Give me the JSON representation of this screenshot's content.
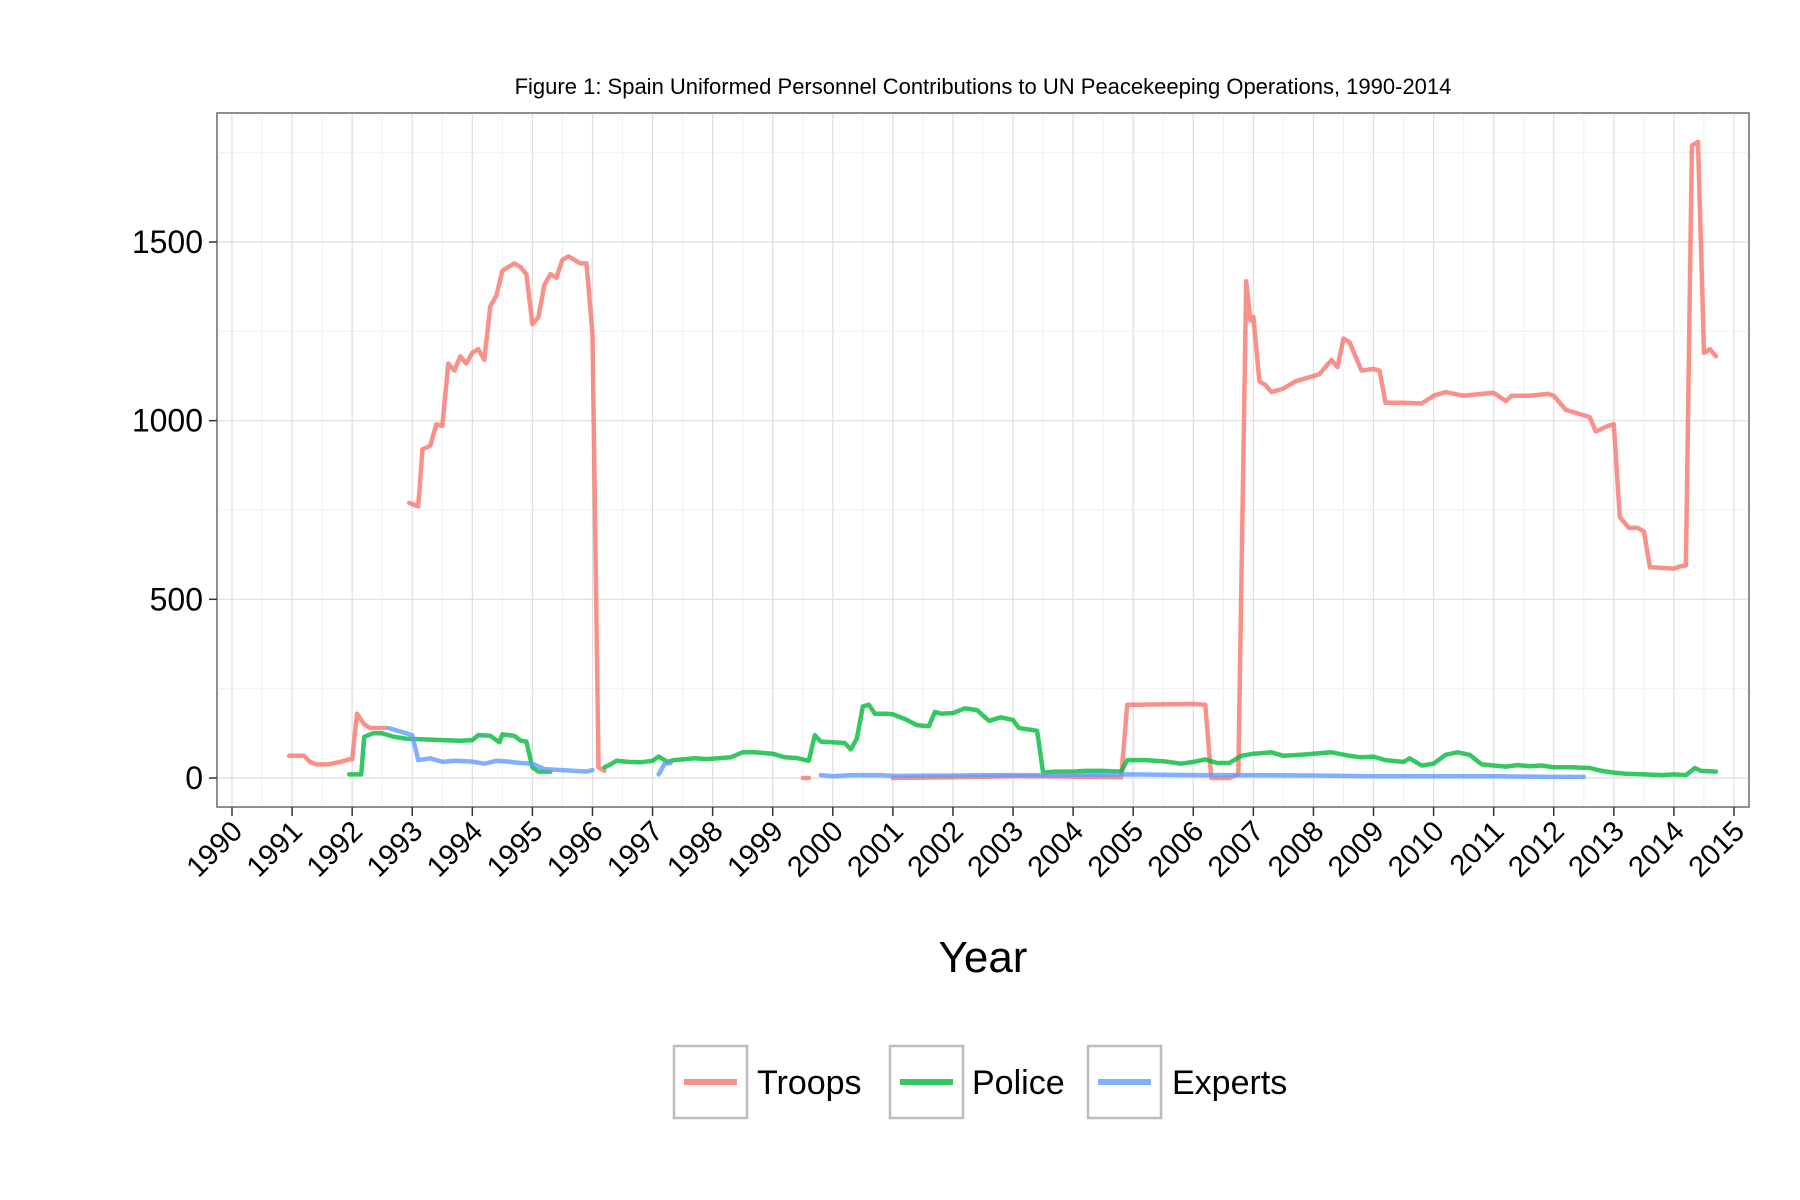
{
  "chart_data": {
    "type": "line",
    "title": "Figure 1: Spain Uniformed Personnel Contributions to UN Peacekeeping Operations, 1990-2014",
    "xlabel": "Year",
    "ylabel": "",
    "xlim": [
      1990,
      2015
    ],
    "ylim": [
      -75,
      1860
    ],
    "y_ticks": [
      0,
      500,
      1000,
      1500
    ],
    "x_ticks": [
      "1990",
      "1991",
      "1992",
      "1993",
      "1994",
      "1995",
      "1996",
      "1997",
      "1998",
      "1999",
      "2000",
      "2001",
      "2002",
      "2003",
      "2004",
      "2005",
      "2006",
      "2007",
      "2008",
      "2009",
      "2010",
      "2011",
      "2012",
      "2013",
      "2014",
      "2015"
    ],
    "grid": true,
    "legend_position": "bottom",
    "series": [
      {
        "name": "Troops",
        "color": "#F8766D",
        "segments": [
          [
            [
              1990.95,
              62
            ],
            [
              1991.2,
              62
            ],
            [
              1991.3,
              45
            ],
            [
              1991.4,
              38
            ],
            [
              1991.6,
              38
            ],
            [
              1991.8,
              45
            ],
            [
              1991.95,
              52
            ],
            [
              1992.0,
              52
            ],
            [
              1992.08,
              180
            ],
            [
              1992.2,
              150
            ],
            [
              1992.3,
              140
            ],
            [
              1992.55,
              140
            ]
          ],
          [
            [
              1992.95,
              770
            ],
            [
              1993.1,
              760
            ],
            [
              1993.17,
              920
            ],
            [
              1993.3,
              930
            ],
            [
              1993.4,
              990
            ],
            [
              1993.5,
              985
            ],
            [
              1993.6,
              1160
            ],
            [
              1993.7,
              1140
            ],
            [
              1993.8,
              1180
            ],
            [
              1993.9,
              1160
            ],
            [
              1994.0,
              1190
            ],
            [
              1994.1,
              1200
            ],
            [
              1994.2,
              1170
            ],
            [
              1994.3,
              1320
            ],
            [
              1994.4,
              1350
            ],
            [
              1994.5,
              1420
            ],
            [
              1994.6,
              1430
            ],
            [
              1994.7,
              1440
            ],
            [
              1994.8,
              1430
            ],
            [
              1994.9,
              1410
            ],
            [
              1995.0,
              1270
            ],
            [
              1995.1,
              1290
            ],
            [
              1995.2,
              1380
            ],
            [
              1995.3,
              1410
            ],
            [
              1995.4,
              1400
            ],
            [
              1995.5,
              1450
            ],
            [
              1995.6,
              1460
            ],
            [
              1995.7,
              1450
            ],
            [
              1995.8,
              1440
            ],
            [
              1995.9,
              1440
            ],
            [
              1996.0,
              1240
            ],
            [
              1996.1,
              30
            ],
            [
              1996.2,
              20
            ]
          ],
          [
            [
              1999.5,
              0
            ],
            [
              1999.6,
              0
            ]
          ],
          [
            [
              2001.0,
              0
            ],
            [
              2002.0,
              2
            ],
            [
              2003.0,
              5
            ],
            [
              2004.0,
              4
            ],
            [
              2004.8,
              2
            ],
            [
              2004.9,
              205
            ],
            [
              2005.0,
              205
            ],
            [
              2005.5,
              206
            ],
            [
              2006.0,
              207
            ],
            [
              2006.2,
              205
            ],
            [
              2006.3,
              0
            ],
            [
              2006.6,
              0
            ],
            [
              2006.75,
              10
            ],
            [
              2006.88,
              1390
            ],
            [
              2006.95,
              1280
            ],
            [
              2007.0,
              1290
            ],
            [
              2007.1,
              1110
            ],
            [
              2007.2,
              1100
            ],
            [
              2007.3,
              1080
            ],
            [
              2007.5,
              1090
            ],
            [
              2007.7,
              1110
            ],
            [
              2007.9,
              1120
            ],
            [
              2008.1,
              1130
            ],
            [
              2008.3,
              1170
            ],
            [
              2008.4,
              1150
            ],
            [
              2008.5,
              1230
            ],
            [
              2008.6,
              1220
            ],
            [
              2008.8,
              1140
            ],
            [
              2009.0,
              1145
            ],
            [
              2009.1,
              1140
            ],
            [
              2009.2,
              1050
            ],
            [
              2009.5,
              1050
            ],
            [
              2009.8,
              1048
            ],
            [
              2010.0,
              1070
            ],
            [
              2010.2,
              1080
            ],
            [
              2010.5,
              1070
            ],
            [
              2010.8,
              1075
            ],
            [
              2011.0,
              1078
            ],
            [
              2011.2,
              1055
            ],
            [
              2011.3,
              1070
            ],
            [
              2011.6,
              1070
            ],
            [
              2011.9,
              1075
            ],
            [
              2012.0,
              1070
            ],
            [
              2012.2,
              1030
            ],
            [
              2012.4,
              1020
            ],
            [
              2012.6,
              1010
            ],
            [
              2012.7,
              970
            ],
            [
              2012.9,
              985
            ],
            [
              2013.0,
              990
            ],
            [
              2013.1,
              730
            ],
            [
              2013.25,
              700
            ],
            [
              2013.4,
              700
            ],
            [
              2013.5,
              690
            ],
            [
              2013.6,
              590
            ],
            [
              2013.8,
              588
            ],
            [
              2014.0,
              586
            ],
            [
              2014.1,
              592
            ],
            [
              2014.2,
              595
            ],
            [
              2014.3,
              1770
            ],
            [
              2014.4,
              1780
            ],
            [
              2014.5,
              1190
            ],
            [
              2014.6,
              1200
            ],
            [
              2014.7,
              1180
            ]
          ]
        ]
      },
      {
        "name": "Police",
        "color": "#00BA38",
        "segments": [
          [
            [
              1991.95,
              10
            ],
            [
              1992.15,
              10
            ],
            [
              1992.2,
              115
            ],
            [
              1992.35,
              125
            ],
            [
              1992.5,
              125
            ],
            [
              1992.7,
              115
            ],
            [
              1992.9,
              110
            ],
            [
              1993.2,
              108
            ],
            [
              1993.5,
              106
            ],
            [
              1993.8,
              104
            ],
            [
              1994.0,
              106
            ],
            [
              1994.1,
              120
            ],
            [
              1994.3,
              118
            ],
            [
              1994.45,
              100
            ],
            [
              1994.5,
              122
            ],
            [
              1994.7,
              118
            ],
            [
              1994.8,
              105
            ],
            [
              1994.9,
              102
            ],
            [
              1995.0,
              30
            ],
            [
              1995.1,
              18
            ],
            [
              1995.3,
              18
            ]
          ],
          [
            [
              1996.2,
              30
            ],
            [
              1996.3,
              38
            ],
            [
              1996.4,
              48
            ],
            [
              1996.6,
              45
            ],
            [
              1996.8,
              44
            ],
            [
              1997.0,
              48
            ],
            [
              1997.1,
              60
            ],
            [
              1997.25,
              45
            ],
            [
              1997.35,
              50
            ],
            [
              1997.5,
              52
            ],
            [
              1997.7,
              55
            ],
            [
              1997.9,
              53
            ],
            [
              1998.1,
              55
            ],
            [
              1998.3,
              58
            ],
            [
              1998.5,
              72
            ],
            [
              1998.7,
              72
            ],
            [
              1999.0,
              68
            ],
            [
              1999.2,
              58
            ],
            [
              1999.4,
              56
            ],
            [
              1999.5,
              52
            ],
            [
              1999.6,
              48
            ],
            [
              1999.7,
              120
            ],
            [
              1999.8,
              102
            ],
            [
              2000.0,
              100
            ],
            [
              2000.2,
              98
            ],
            [
              2000.3,
              80
            ],
            [
              2000.4,
              110
            ],
            [
              2000.5,
              200
            ],
            [
              2000.6,
              205
            ],
            [
              2000.7,
              180
            ],
            [
              2000.9,
              180
            ],
            [
              2001.0,
              178
            ],
            [
              2001.2,
              165
            ],
            [
              2001.4,
              148
            ],
            [
              2001.6,
              145
            ],
            [
              2001.7,
              185
            ],
            [
              2001.8,
              180
            ],
            [
              2002.0,
              182
            ],
            [
              2002.2,
              195
            ],
            [
              2002.4,
              190
            ],
            [
              2002.5,
              175
            ],
            [
              2002.6,
              160
            ],
            [
              2002.8,
              170
            ],
            [
              2003.0,
              162
            ],
            [
              2003.1,
              140
            ],
            [
              2003.4,
              132
            ],
            [
              2003.5,
              15
            ],
            [
              2003.7,
              18
            ],
            [
              2004.0,
              18
            ],
            [
              2004.2,
              20
            ],
            [
              2004.5,
              20
            ],
            [
              2004.8,
              18
            ],
            [
              2004.9,
              50
            ],
            [
              2005.2,
              50
            ],
            [
              2005.5,
              47
            ],
            [
              2005.8,
              40
            ],
            [
              2006.0,
              45
            ],
            [
              2006.2,
              52
            ],
            [
              2006.4,
              42
            ],
            [
              2006.6,
              42
            ],
            [
              2006.8,
              62
            ],
            [
              2007.0,
              68
            ],
            [
              2007.3,
              72
            ],
            [
              2007.5,
              62
            ],
            [
              2007.8,
              65
            ],
            [
              2008.0,
              68
            ],
            [
              2008.3,
              72
            ],
            [
              2008.6,
              62
            ],
            [
              2008.8,
              58
            ],
            [
              2009.0,
              60
            ],
            [
              2009.2,
              50
            ],
            [
              2009.5,
              45
            ],
            [
              2009.6,
              55
            ],
            [
              2009.8,
              35
            ],
            [
              2010.0,
              40
            ],
            [
              2010.2,
              65
            ],
            [
              2010.4,
              72
            ],
            [
              2010.6,
              65
            ],
            [
              2010.8,
              38
            ],
            [
              2011.0,
              35
            ],
            [
              2011.2,
              32
            ],
            [
              2011.4,
              36
            ],
            [
              2011.6,
              33
            ],
            [
              2011.8,
              35
            ],
            [
              2012.0,
              30
            ],
            [
              2012.3,
              30
            ],
            [
              2012.6,
              28
            ],
            [
              2012.8,
              20
            ],
            [
              2013.0,
              15
            ],
            [
              2013.2,
              12
            ],
            [
              2013.5,
              10
            ],
            [
              2013.8,
              8
            ],
            [
              2014.0,
              10
            ],
            [
              2014.2,
              8
            ],
            [
              2014.35,
              28
            ],
            [
              2014.45,
              20
            ],
            [
              2014.7,
              18
            ]
          ]
        ]
      },
      {
        "name": "Experts",
        "color": "#619CFF",
        "segments": [
          [
            [
              1992.6,
              140
            ],
            [
              1992.8,
              130
            ],
            [
              1993.0,
              120
            ],
            [
              1993.1,
              50
            ],
            [
              1993.3,
              55
            ],
            [
              1993.5,
              45
            ],
            [
              1993.7,
              48
            ],
            [
              1994.0,
              46
            ],
            [
              1994.2,
              40
            ],
            [
              1994.4,
              48
            ],
            [
              1994.6,
              46
            ],
            [
              1994.8,
              42
            ],
            [
              1995.0,
              40
            ],
            [
              1995.2,
              25
            ],
            [
              1995.5,
              22
            ],
            [
              1995.7,
              20
            ],
            [
              1995.9,
              18
            ],
            [
              1996.0,
              22
            ]
          ],
          [
            [
              1997.1,
              10
            ],
            [
              1997.2,
              40
            ],
            [
              1997.3,
              42
            ]
          ],
          [
            [
              1999.8,
              8
            ],
            [
              2000.0,
              5
            ],
            [
              2000.3,
              8
            ],
            [
              2000.8,
              8
            ],
            [
              2001.0,
              6
            ],
            [
              2002.0,
              7
            ],
            [
              2003.0,
              8
            ],
            [
              2004.0,
              8
            ],
            [
              2005.0,
              10
            ],
            [
              2006.0,
              8
            ],
            [
              2007.0,
              8
            ],
            [
              2008.0,
              7
            ],
            [
              2009.0,
              5
            ],
            [
              2010.0,
              5
            ],
            [
              2011.0,
              5
            ],
            [
              2012.0,
              3
            ],
            [
              2012.5,
              3
            ]
          ]
        ]
      }
    ]
  }
}
